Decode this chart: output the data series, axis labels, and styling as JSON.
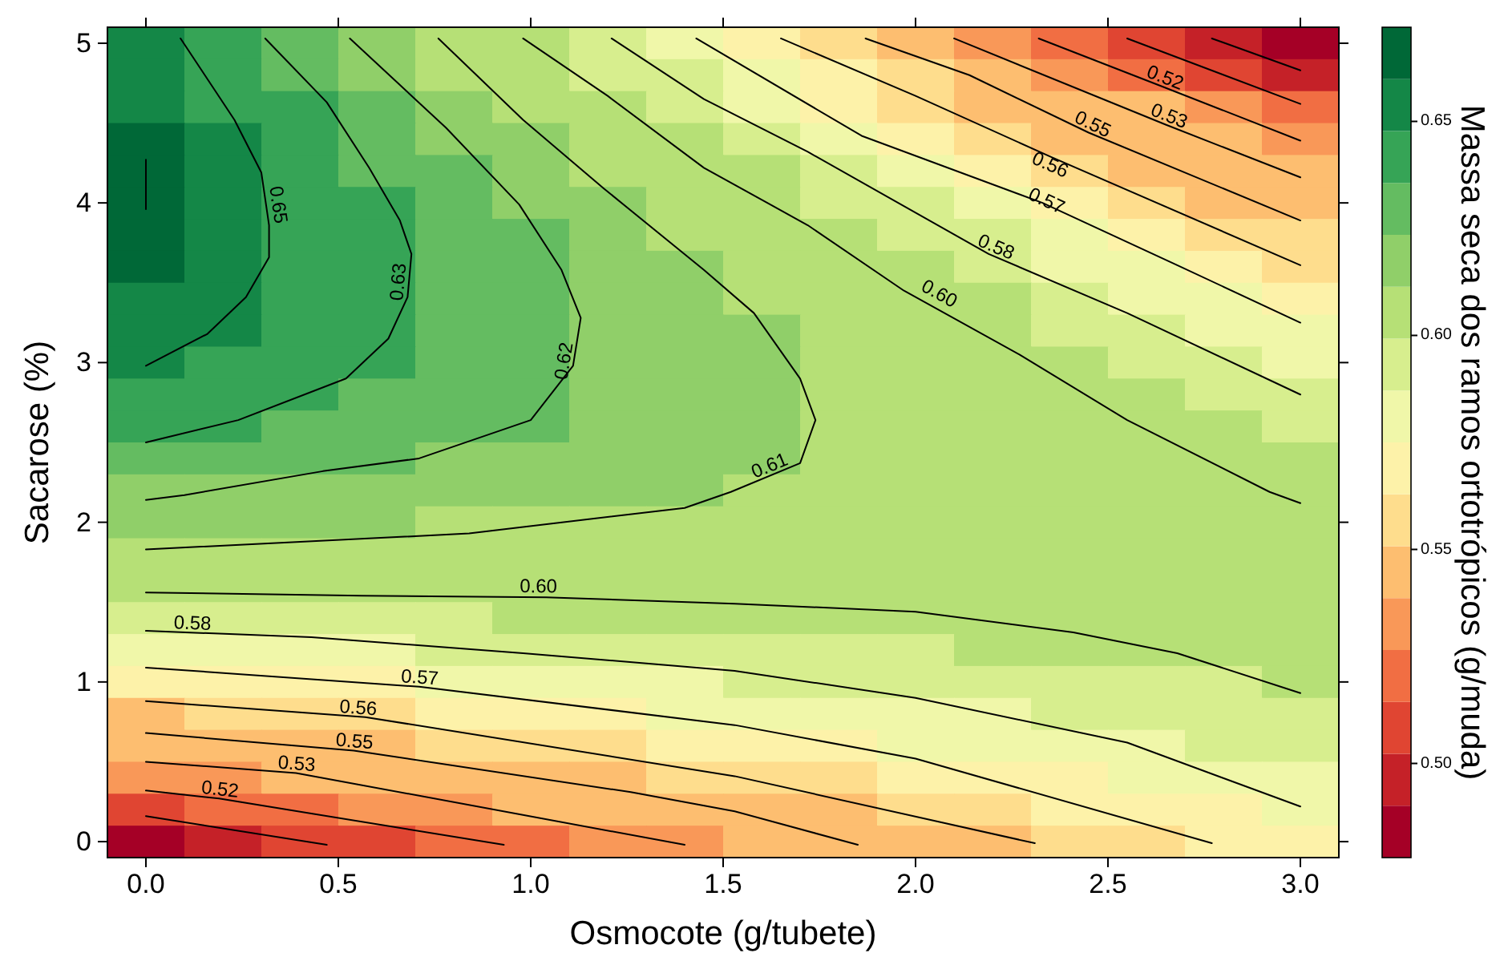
{
  "chart_data": {
    "type": "heatmap",
    "xlabel": "Osmocote (g/tubete)",
    "ylabel": "Sacarose (%)",
    "clabel": "Massa seca dos ramos ortotrópicos (g/muda)",
    "xlim": [
      -0.1,
      3.1
    ],
    "ylim": [
      -0.1,
      5.1
    ],
    "xticks": [
      {
        "value": 0,
        "label": "0.0"
      },
      0.5,
      {
        "value": 1,
        "label": "1.0"
      },
      1.5,
      {
        "value": 2,
        "label": "2.0"
      },
      2.5,
      {
        "value": 3,
        "label": "3.0"
      }
    ],
    "yticks": [
      0,
      1,
      2,
      3,
      4,
      5
    ],
    "clim": [
      0.478,
      0.672
    ],
    "cticks": [
      {
        "value": 0.5,
        "label": "0.50"
      },
      0.55,
      {
        "value": 0.6,
        "label": "0.60"
      },
      0.65
    ],
    "cells": [
      [
        0.65,
        0.64,
        0.63,
        0.62,
        0.61,
        0.6,
        0.59,
        0.58,
        0.57,
        0.56,
        0.55,
        0.53,
        0.52,
        0.51,
        0.5,
        0.49
      ],
      [
        0.65,
        0.64,
        0.63,
        0.62,
        0.61,
        0.6,
        0.59,
        0.59,
        0.58,
        0.57,
        0.56,
        0.54,
        0.53,
        0.52,
        0.51,
        0.5
      ],
      [
        0.65,
        0.64,
        0.64,
        0.63,
        0.62,
        0.61,
        0.6,
        0.59,
        0.58,
        0.57,
        0.56,
        0.55,
        0.54,
        0.54,
        0.53,
        0.52
      ],
      [
        0.66,
        0.65,
        0.64,
        0.63,
        0.62,
        0.62,
        0.61,
        0.6,
        0.59,
        0.58,
        0.57,
        0.56,
        0.55,
        0.55,
        0.54,
        0.53
      ],
      [
        0.66,
        0.65,
        0.64,
        0.63,
        0.63,
        0.62,
        0.61,
        0.6,
        0.6,
        0.59,
        0.58,
        0.57,
        0.56,
        0.55,
        0.55,
        0.54
      ],
      [
        0.66,
        0.65,
        0.64,
        0.64,
        0.63,
        0.62,
        0.62,
        0.61,
        0.6,
        0.59,
        0.59,
        0.58,
        0.57,
        0.56,
        0.55,
        0.55
      ],
      [
        0.66,
        0.65,
        0.64,
        0.64,
        0.63,
        0.63,
        0.62,
        0.61,
        0.61,
        0.6,
        0.59,
        0.59,
        0.58,
        0.57,
        0.56,
        0.56
      ],
      [
        0.66,
        0.65,
        0.64,
        0.64,
        0.63,
        0.63,
        0.62,
        0.62,
        0.61,
        0.6,
        0.6,
        0.59,
        0.58,
        0.58,
        0.57,
        0.56
      ],
      [
        0.65,
        0.65,
        0.64,
        0.64,
        0.63,
        0.63,
        0.62,
        0.62,
        0.61,
        0.61,
        0.6,
        0.6,
        0.59,
        0.58,
        0.58,
        0.57
      ],
      [
        0.65,
        0.65,
        0.64,
        0.64,
        0.63,
        0.63,
        0.62,
        0.62,
        0.62,
        0.61,
        0.6,
        0.6,
        0.59,
        0.59,
        0.58,
        0.58
      ],
      [
        0.65,
        0.64,
        0.64,
        0.64,
        0.63,
        0.63,
        0.62,
        0.62,
        0.62,
        0.61,
        0.61,
        0.6,
        0.6,
        0.59,
        0.59,
        0.58
      ],
      [
        0.64,
        0.64,
        0.64,
        0.63,
        0.63,
        0.63,
        0.62,
        0.62,
        0.62,
        0.61,
        0.61,
        0.61,
        0.6,
        0.6,
        0.59,
        0.59
      ],
      [
        0.64,
        0.64,
        0.63,
        0.63,
        0.63,
        0.63,
        0.62,
        0.62,
        0.62,
        0.61,
        0.61,
        0.61,
        0.6,
        0.6,
        0.6,
        0.59
      ],
      [
        0.63,
        0.63,
        0.63,
        0.63,
        0.62,
        0.62,
        0.62,
        0.62,
        0.62,
        0.61,
        0.61,
        0.61,
        0.6,
        0.6,
        0.6,
        0.6
      ],
      [
        0.62,
        0.62,
        0.62,
        0.62,
        0.62,
        0.62,
        0.62,
        0.62,
        0.61,
        0.61,
        0.61,
        0.61,
        0.61,
        0.6,
        0.6,
        0.6
      ],
      [
        0.62,
        0.62,
        0.62,
        0.62,
        0.61,
        0.61,
        0.61,
        0.61,
        0.61,
        0.61,
        0.61,
        0.61,
        0.61,
        0.6,
        0.6,
        0.6
      ],
      [
        0.61,
        0.61,
        0.61,
        0.61,
        0.61,
        0.61,
        0.61,
        0.61,
        0.61,
        0.61,
        0.61,
        0.61,
        0.6,
        0.6,
        0.6,
        0.6
      ],
      [
        0.6,
        0.6,
        0.6,
        0.6,
        0.6,
        0.6,
        0.6,
        0.6,
        0.6,
        0.6,
        0.6,
        0.6,
        0.6,
        0.6,
        0.6,
        0.6
      ],
      [
        0.59,
        0.59,
        0.59,
        0.59,
        0.59,
        0.6,
        0.6,
        0.6,
        0.6,
        0.6,
        0.6,
        0.6,
        0.6,
        0.6,
        0.6,
        0.6
      ],
      [
        0.58,
        0.58,
        0.58,
        0.58,
        0.59,
        0.59,
        0.59,
        0.59,
        0.59,
        0.59,
        0.59,
        0.6,
        0.6,
        0.6,
        0.6,
        0.6
      ],
      [
        0.57,
        0.57,
        0.57,
        0.57,
        0.58,
        0.58,
        0.58,
        0.58,
        0.59,
        0.59,
        0.59,
        0.59,
        0.59,
        0.59,
        0.59,
        0.6
      ],
      [
        0.55,
        0.56,
        0.56,
        0.56,
        0.57,
        0.57,
        0.57,
        0.58,
        0.58,
        0.58,
        0.58,
        0.58,
        0.59,
        0.59,
        0.59,
        0.59
      ],
      [
        0.54,
        0.54,
        0.55,
        0.55,
        0.56,
        0.56,
        0.56,
        0.57,
        0.57,
        0.57,
        0.58,
        0.58,
        0.58,
        0.58,
        0.59,
        0.59
      ],
      [
        0.53,
        0.53,
        0.54,
        0.54,
        0.54,
        0.55,
        0.55,
        0.56,
        0.56,
        0.56,
        0.57,
        0.57,
        0.57,
        0.58,
        0.58,
        0.58
      ],
      [
        0.51,
        0.52,
        0.52,
        0.53,
        0.53,
        0.54,
        0.54,
        0.55,
        0.55,
        0.55,
        0.56,
        0.56,
        0.57,
        0.57,
        0.57,
        0.58
      ],
      [
        0.49,
        0.5,
        0.51,
        0.51,
        0.52,
        0.52,
        0.53,
        0.53,
        0.54,
        0.54,
        0.55,
        0.55,
        0.56,
        0.56,
        0.57,
        0.57
      ]
    ],
    "series": [
      {
        "type": "line",
        "color": "#000000",
        "x": [
          0,
          0
        ],
        "values": [
          4.27,
          3.96
        ]
      },
      {
        "type": "line",
        "color": "#000000",
        "x": [
          0.09,
          0.23,
          0.3,
          0.32,
          0.32,
          0.26,
          0.16,
          0
        ],
        "values": [
          5.03,
          4.52,
          4.19,
          3.86,
          3.66,
          3.41,
          3.18,
          2.98
        ]
      },
      {
        "type": "line",
        "color": "#000000",
        "x": [
          0.31,
          0.47,
          0.58,
          0.66,
          0.69,
          0.68,
          0.63,
          0.52,
          0.24,
          0
        ],
        "values": [
          5.03,
          4.63,
          4.22,
          3.89,
          3.68,
          3.41,
          3.15,
          2.9,
          2.64,
          2.5
        ]
      },
      {
        "type": "line",
        "color": "#000000",
        "x": [
          0.53,
          0.78,
          0.97,
          1.08,
          1.13,
          1.11,
          1.0,
          0.71,
          0.46,
          0.1,
          0
        ],
        "values": [
          5.03,
          4.47,
          3.99,
          3.58,
          3.28,
          2.98,
          2.64,
          2.4,
          2.32,
          2.17,
          2.14
        ]
      },
      {
        "type": "line",
        "color": "#000000",
        "x": [
          0.76,
          0.98,
          1.19,
          1.45,
          1.58,
          1.7,
          1.74,
          1.7,
          1.52,
          1.4,
          0.84,
          0
        ],
        "values": [
          5.03,
          4.52,
          4.09,
          3.58,
          3.31,
          2.9,
          2.64,
          2.37,
          2.19,
          2.09,
          1.93,
          1.83
        ]
      },
      {
        "type": "line",
        "color": "#000000",
        "x": [
          0.98,
          1.2,
          1.45,
          1.72,
          1.97,
          2.27,
          2.55,
          2.92,
          3.0
        ],
        "values": [
          5.03,
          4.67,
          4.22,
          3.86,
          3.45,
          3.05,
          2.64,
          2.19,
          2.12
        ]
      },
      {
        "type": "line",
        "color": "#000000",
        "x": [
          1.21,
          1.45,
          1.72,
          2.19,
          2.55,
          3.0
        ],
        "values": [
          5.03,
          4.65,
          4.32,
          3.68,
          3.31,
          2.8
        ]
      },
      {
        "type": "line",
        "color": "#000000",
        "x": [
          1.43,
          1.86,
          2.33,
          2.68,
          3.0
        ],
        "values": [
          5.03,
          4.42,
          4.0,
          3.61,
          3.25
        ]
      },
      {
        "type": "line",
        "color": "#000000",
        "x": [
          1.65,
          2.0,
          2.35,
          3.0
        ],
        "values": [
          5.03,
          4.67,
          4.29,
          3.61
        ]
      },
      {
        "type": "line",
        "color": "#000000",
        "x": [
          1.87,
          2.14,
          2.45,
          3.0
        ],
        "values": [
          5.03,
          4.8,
          4.44,
          3.89
        ]
      },
      {
        "type": "line",
        "color": "#000000",
        "x": [
          2.1,
          2.65,
          3.0
        ],
        "values": [
          5.03,
          4.49,
          4.16
        ]
      },
      {
        "type": "line",
        "color": "#000000",
        "x": [
          2.32,
          2.64,
          3.0
        ],
        "values": [
          5.03,
          4.73,
          4.39
        ]
      },
      {
        "type": "line",
        "color": "#000000",
        "x": [
          2.55,
          3.0
        ],
        "values": [
          5.03,
          4.62
        ]
      },
      {
        "type": "line",
        "color": "#000000",
        "x": [
          2.77,
          3.0
        ],
        "values": [
          5.03,
          4.83
        ]
      },
      {
        "type": "line",
        "color": "#000000",
        "x": [
          0,
          0.56,
          1.04,
          1.53,
          2.0,
          2.41,
          2.68,
          3.0
        ],
        "values": [
          1.56,
          1.54,
          1.53,
          1.49,
          1.44,
          1.31,
          1.18,
          0.93
        ]
      },
      {
        "type": "line",
        "color": "#000000",
        "x": [
          0,
          0.43,
          0.98,
          1.53,
          2.0,
          2.55,
          3.0
        ],
        "values": [
          1.32,
          1.28,
          1.18,
          1.07,
          0.9,
          0.62,
          0.22
        ]
      },
      {
        "type": "line",
        "color": "#000000",
        "x": [
          0,
          0.71,
          1.53,
          2.0,
          2.77
        ],
        "values": [
          1.09,
          0.97,
          0.73,
          0.52,
          -0.01
        ]
      },
      {
        "type": "line",
        "color": "#000000",
        "x": [
          0,
          0.57,
          1.53,
          2.31
        ],
        "values": [
          0.88,
          0.78,
          0.41,
          -0.01
        ]
      },
      {
        "type": "line",
        "color": "#000000",
        "x": [
          0,
          0.54,
          1.26,
          1.53,
          1.85
        ],
        "values": [
          0.68,
          0.57,
          0.31,
          0.19,
          -0.02
        ]
      },
      {
        "type": "line",
        "color": "#000000",
        "x": [
          0,
          0.39,
          1.4
        ],
        "values": [
          0.5,
          0.43,
          -0.02
        ]
      },
      {
        "type": "line",
        "color": "#000000",
        "x": [
          0,
          0.19,
          0.93
        ],
        "values": [
          0.32,
          0.27,
          -0.02
        ]
      },
      {
        "type": "line",
        "color": "#000000",
        "x": [
          0,
          0.47
        ],
        "values": [
          0.16,
          -0.02
        ]
      }
    ],
    "annotations": [
      {
        "text": "0.65",
        "x": 0.32,
        "y": 3.98
      },
      {
        "text": "0.63",
        "x": 0.68,
        "y": 3.5
      },
      {
        "text": "0.62",
        "x": 1.11,
        "y": 3.0
      },
      {
        "text": "0.61",
        "x": 1.63,
        "y": 2.3
      },
      {
        "text": "0.60",
        "x": 2.05,
        "y": 3.38
      },
      {
        "text": "0.58",
        "x": 2.2,
        "y": 3.67
      },
      {
        "text": "0.57",
        "x": 2.33,
        "y": 3.96
      },
      {
        "text": "0.56",
        "x": 2.35,
        "y": 4.24
      },
      {
        "text": "0.55",
        "x": 2.45,
        "y": 4.44
      },
      {
        "text": "0.53",
        "x": 2.65,
        "y": 4.49
      },
      {
        "text": "0.52",
        "x": 2.64,
        "y": 4.73
      },
      {
        "text": "0.60",
        "x": 1.02,
        "y": 1.54
      },
      {
        "text": "0.58",
        "x": 0.12,
        "y": 1.31
      },
      {
        "text": "0.57",
        "x": 0.71,
        "y": 0.97
      },
      {
        "text": "0.56",
        "x": 0.55,
        "y": 0.78
      },
      {
        "text": "0.55",
        "x": 0.54,
        "y": 0.57
      },
      {
        "text": "0.53",
        "x": 0.39,
        "y": 0.43
      },
      {
        "text": "0.52",
        "x": 0.19,
        "y": 0.27
      }
    ]
  }
}
